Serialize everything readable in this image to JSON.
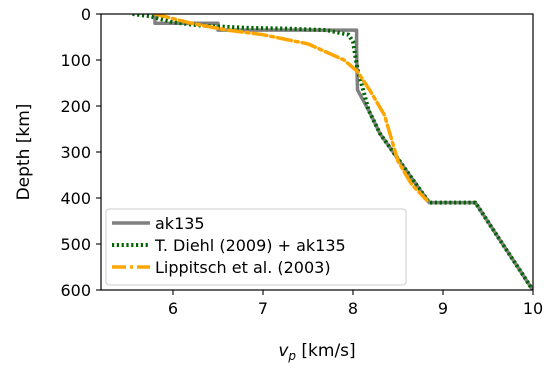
{
  "chart_data": {
    "type": "line",
    "xlabel_main": "v",
    "xlabel_sub": "p",
    "xlabel_unit": " [km/s]",
    "ylabel": "Depth [km]",
    "xlim": [
      5.2,
      10.0
    ],
    "ylim": [
      600,
      0
    ],
    "y_inverted": true,
    "xticks": [
      "6",
      "7",
      "8",
      "9",
      "10"
    ],
    "yticks": [
      "0",
      "100",
      "200",
      "300",
      "400",
      "500",
      "600"
    ],
    "grid": false,
    "legend_position": "bottom-left",
    "series": [
      {
        "name": "ak135",
        "color": "#808080",
        "style": "solid",
        "points": [
          [
            5.8,
            0
          ],
          [
            5.8,
            20
          ],
          [
            6.5,
            20
          ],
          [
            6.5,
            35
          ],
          [
            8.04,
            35
          ],
          [
            8.04,
            77.5
          ],
          [
            8.045,
            120
          ],
          [
            8.05,
            165
          ],
          [
            8.175,
            210
          ],
          [
            8.3,
            260
          ],
          [
            8.482,
            310
          ],
          [
            8.665,
            360
          ],
          [
            8.847,
            410
          ],
          [
            9.03,
            410
          ],
          [
            9.36,
            410
          ],
          [
            9.528,
            460
          ],
          [
            9.696,
            510
          ],
          [
            9.864,
            560
          ],
          [
            10.03,
            610
          ]
        ]
      },
      {
        "name": "T. Diehl (2009) + ak135",
        "color": "#006400",
        "style": "dotted",
        "points": [
          [
            5.55,
            0
          ],
          [
            5.75,
            5
          ],
          [
            6.0,
            18
          ],
          [
            6.3,
            25
          ],
          [
            6.8,
            30
          ],
          [
            7.3,
            32
          ],
          [
            7.7,
            35
          ],
          [
            7.95,
            45
          ],
          [
            8.0,
            60
          ],
          [
            8.02,
            85
          ],
          [
            8.05,
            120
          ],
          [
            8.175,
            210
          ],
          [
            8.3,
            260
          ],
          [
            8.482,
            310
          ],
          [
            8.665,
            360
          ],
          [
            8.847,
            410
          ],
          [
            9.36,
            410
          ],
          [
            9.528,
            460
          ],
          [
            9.696,
            510
          ],
          [
            9.864,
            560
          ],
          [
            10.03,
            610
          ]
        ]
      },
      {
        "name": "Lippitsch et al. (2003)",
        "color": "#FFA500",
        "style": "dashdot",
        "points": [
          [
            5.8,
            0
          ],
          [
            6.2,
            20
          ],
          [
            6.6,
            35
          ],
          [
            7.0,
            45
          ],
          [
            7.5,
            65
          ],
          [
            7.9,
            100
          ],
          [
            8.05,
            125
          ],
          [
            8.2,
            170
          ],
          [
            8.35,
            220
          ],
          [
            8.5,
            320
          ],
          [
            8.65,
            370
          ],
          [
            8.82,
            405
          ]
        ]
      }
    ]
  }
}
